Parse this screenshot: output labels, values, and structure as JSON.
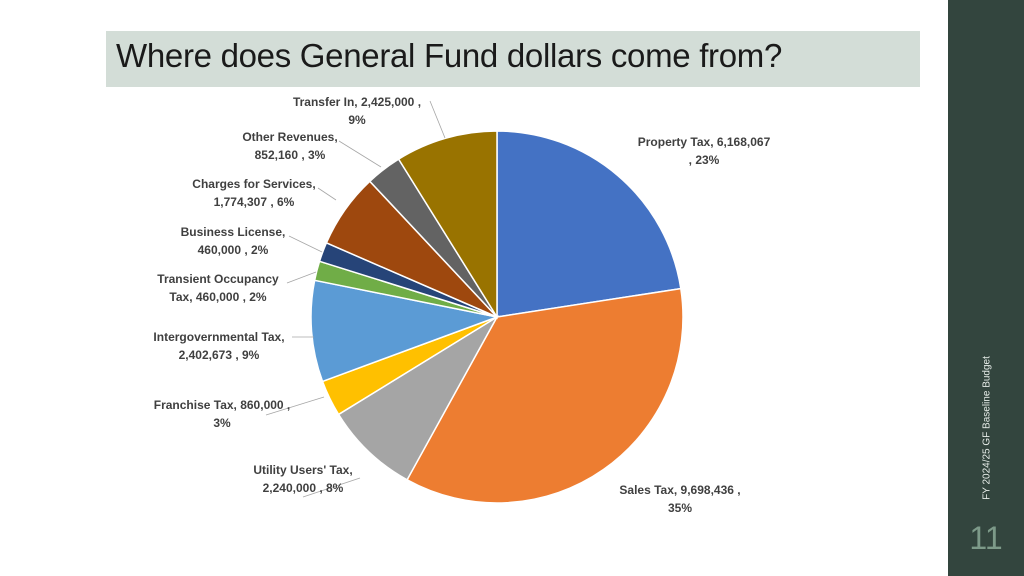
{
  "slide": {
    "title": "Where does General Fund dollars come from?",
    "side_caption": "FY 2024/25 GF Baseline Budget",
    "page_number": "11",
    "band_color": "#33453e",
    "title_bar_color": "#d3ddd7"
  },
  "chart_data": {
    "type": "pie",
    "title": "",
    "start_angle_deg": 0,
    "direction": "clockwise",
    "slices": [
      {
        "category": "Property Tax",
        "value": 6168067,
        "percent": 23,
        "color": "#4472c4",
        "label_lines": [
          "Property Tax,  6,168,067",
          ", 23%"
        ]
      },
      {
        "category": "Sales Tax",
        "value": 9698436,
        "percent": 35,
        "color": "#ed7d31",
        "label_lines": [
          "Sales Tax,  9,698,436 ,",
          "35%"
        ]
      },
      {
        "category": "Utility Users' Tax",
        "value": 2240000,
        "percent": 8,
        "color": "#a5a5a5",
        "label_lines": [
          "Utility Users' Tax,",
          "2,240,000 , 8%"
        ]
      },
      {
        "category": "Franchise Tax",
        "value": 860000,
        "percent": 3,
        "color": "#ffc000",
        "label_lines": [
          "Franchise Tax,  860,000 ,",
          "3%"
        ]
      },
      {
        "category": "Intergovernmental Tax",
        "value": 2402673,
        "percent": 9,
        "color": "#5b9bd5",
        "label_lines": [
          "Intergovernmental Tax,",
          "2,402,673 , 9%"
        ]
      },
      {
        "category": "Transient Occupancy Tax",
        "value": 460000,
        "percent": 2,
        "color": "#70ad47",
        "label_lines": [
          "Transient Occupancy",
          "Tax,  460,000 , 2%"
        ]
      },
      {
        "category": "Business License",
        "value": 460000,
        "percent": 2,
        "color": "#264478",
        "label_lines": [
          "Business License,",
          "460,000 , 2%"
        ]
      },
      {
        "category": "Charges for Services",
        "value": 1774307,
        "percent": 6,
        "color": "#9e480e",
        "label_lines": [
          "Charges for Services,",
          "1,774,307 , 6%"
        ]
      },
      {
        "category": "Other Revenues",
        "value": 852160,
        "percent": 3,
        "color": "#636363",
        "label_lines": [
          "Other Revenues,",
          "852,160 , 3%"
        ]
      },
      {
        "category": "Transfer In",
        "value": 2425000,
        "percent": 9,
        "color": "#997300",
        "label_lines": [
          "Transfer In,  2,425,000 ,",
          "9%"
        ]
      }
    ]
  }
}
